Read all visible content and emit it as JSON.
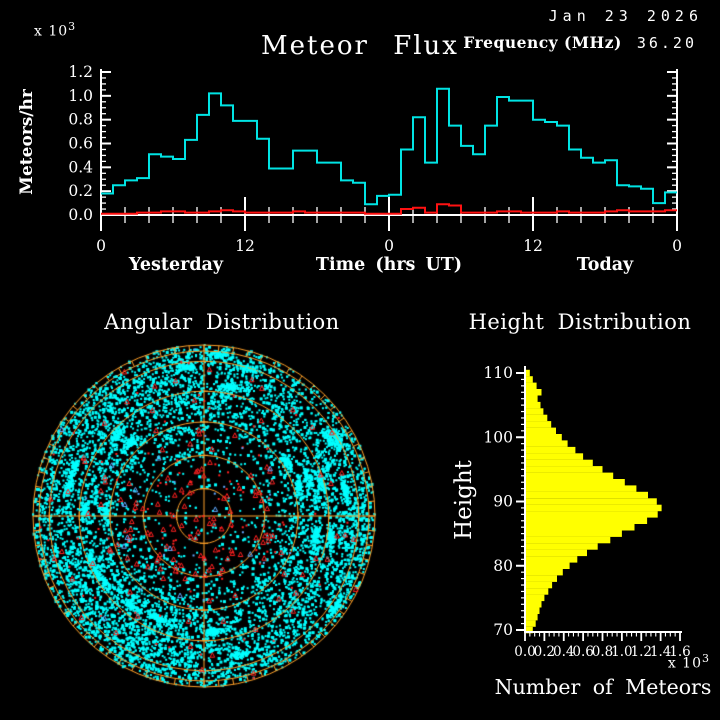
{
  "header": {
    "title": "Meteor Flux",
    "date": "Jan 23 2026",
    "frequency_label": "Frequency (MHz)",
    "frequency_value": "36.20"
  },
  "labels": {
    "scale_text": "x 10",
    "scale_exp": "3"
  },
  "chart_data": [
    {
      "id": "flux",
      "type": "line",
      "subtype": "step",
      "title": "Meteor Flux",
      "ylabel": "Meteors/hr",
      "y_scale": "x 10^3",
      "xlabel": "Time (hrs UT)",
      "x_section_labels": [
        "Yesterday",
        "Today"
      ],
      "x_tick_labels": [
        "0",
        "12",
        "0",
        "12",
        "0"
      ],
      "x_tick_hours": [
        0,
        12,
        24,
        36,
        48
      ],
      "y_tick_labels": [
        "0.0",
        "0.2",
        "0.4",
        "0.6",
        "0.8",
        "1.0",
        "1.2"
      ],
      "ylim": [
        0,
        1.2
      ],
      "hours_total": 48,
      "grid": false,
      "series": [
        {
          "name": "meteor-flux-total",
          "color": "#00e4e4",
          "values": [
            0.18,
            0.25,
            0.29,
            0.31,
            0.51,
            0.49,
            0.47,
            0.63,
            0.84,
            1.02,
            0.92,
            0.79,
            0.79,
            0.64,
            0.39,
            0.39,
            0.54,
            0.54,
            0.44,
            0.44,
            0.29,
            0.27,
            0.09,
            0.16,
            0.17,
            0.55,
            0.82,
            0.44,
            1.06,
            0.75,
            0.58,
            0.51,
            0.75,
            0.99,
            0.96,
            0.96,
            0.8,
            0.78,
            0.75,
            0.55,
            0.48,
            0.44,
            0.46,
            0.25,
            0.24,
            0.22,
            0.1,
            0.19
          ]
        },
        {
          "name": "meteor-flux-secondary",
          "color": "#ff1212",
          "values": [
            0.01,
            0.01,
            0.01,
            0.02,
            0.02,
            0.03,
            0.03,
            0.02,
            0.02,
            0.03,
            0.04,
            0.03,
            0.02,
            0.02,
            0.02,
            0.02,
            0.03,
            0.02,
            0.02,
            0.02,
            0.02,
            0.02,
            0.01,
            0.01,
            0.01,
            0.05,
            0.06,
            0.02,
            0.09,
            0.08,
            0.02,
            0.02,
            0.02,
            0.03,
            0.03,
            0.02,
            0.02,
            0.02,
            0.03,
            0.02,
            0.02,
            0.02,
            0.03,
            0.04,
            0.03,
            0.03,
            0.03,
            0.04
          ]
        }
      ]
    },
    {
      "id": "angular",
      "type": "scatter",
      "subtype": "polar-sky-map",
      "title": "Angular Distribution",
      "grid_color": "#ffa028",
      "ring_radii_fraction": [
        0.16,
        0.355,
        0.55,
        0.73,
        0.905
      ],
      "outer_ring_fractions": [
        0.965,
        1.0
      ],
      "rim_tick_step_deg": 5,
      "seed": 20260123,
      "points": {
        "cyan": {
          "count": 6800,
          "clumps": 26,
          "clump_size": 55,
          "color": "#00ffff"
        },
        "red": {
          "count": 250,
          "color": "#ff2020"
        },
        "blue": {
          "count": 30,
          "color": "#60a8ff"
        }
      }
    },
    {
      "id": "height",
      "type": "bar",
      "subtype": "horizontal-histogram",
      "title": "Height Distribution",
      "ylabel": "Height",
      "xlabel": "Number of Meteors",
      "x_scale": "x 10^3",
      "bar_color": "#ffff00",
      "y_tick_values": [
        70,
        80,
        90,
        100,
        110
      ],
      "x_tick_labels": [
        "0.0",
        "0.2",
        "0.4",
        "0.6",
        "0.8",
        "1.0",
        "1.2",
        "1.4",
        "1.6"
      ],
      "xlim": [
        0,
        1.6
      ],
      "ylim": [
        70,
        110
      ],
      "heights_km": [
        70,
        71,
        72,
        73,
        74,
        75,
        76,
        77,
        78,
        79,
        80,
        81,
        82,
        83,
        84,
        85,
        86,
        87,
        88,
        89,
        90,
        91,
        92,
        93,
        94,
        95,
        96,
        97,
        98,
        99,
        100,
        101,
        102,
        103,
        104,
        105,
        106,
        107,
        108,
        109,
        110
      ],
      "values": [
        0.08,
        0.11,
        0.13,
        0.15,
        0.17,
        0.2,
        0.24,
        0.28,
        0.33,
        0.39,
        0.46,
        0.54,
        0.64,
        0.75,
        0.88,
        1.0,
        1.13,
        1.26,
        1.37,
        1.41,
        1.36,
        1.27,
        1.15,
        1.03,
        0.91,
        0.8,
        0.7,
        0.6,
        0.52,
        0.44,
        0.38,
        0.32,
        0.27,
        0.23,
        0.19,
        0.16,
        0.13,
        0.17,
        0.12,
        0.08,
        0.05
      ]
    }
  ]
}
